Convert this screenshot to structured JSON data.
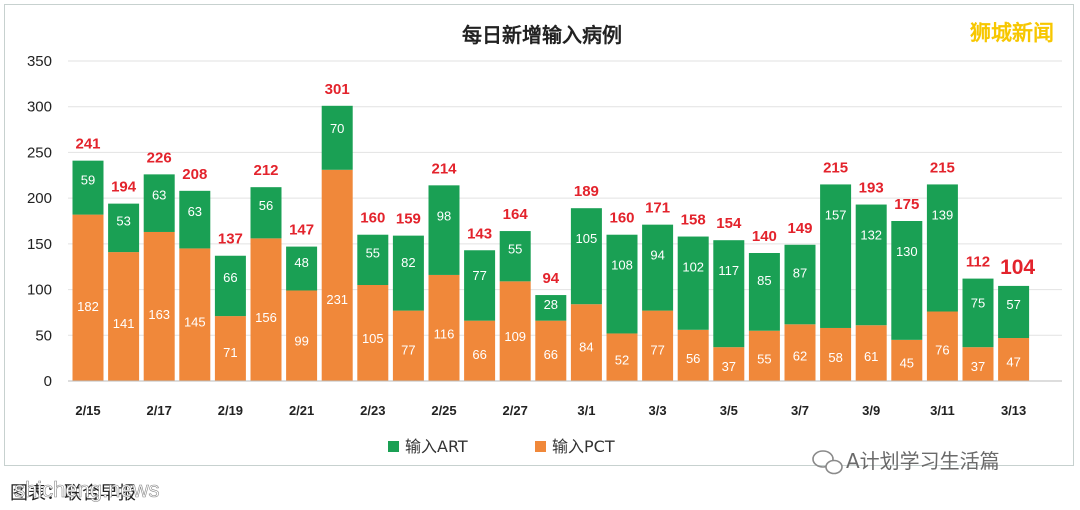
{
  "brand": "狮城新闻",
  "watermark": "A计划学习生活篇",
  "footer": "图表：联合早报",
  "site": "shicheng.news",
  "colors": {
    "art": "#1aa054",
    "pct": "#f0883a",
    "total": "#e3232c",
    "brand": "#f7c700"
  },
  "chart_data": {
    "type": "bar",
    "stacked": true,
    "title": "每日新增输入病例",
    "ylim": [
      0,
      350
    ],
    "yticks": [
      0,
      50,
      100,
      150,
      200,
      250,
      300,
      350
    ],
    "categories": [
      "2/15",
      "2/16",
      "2/17",
      "2/18",
      "2/19",
      "2/20",
      "2/21",
      "2/22",
      "2/23",
      "2/24",
      "2/25",
      "2/26",
      "2/27",
      "2/28",
      "3/1",
      "3/2",
      "3/3",
      "3/4",
      "3/5",
      "3/6",
      "3/7",
      "3/8",
      "3/9",
      "3/10",
      "3/11",
      "3/12",
      "3/13"
    ],
    "xtick_labels": [
      "2/15",
      "",
      "2/17",
      "",
      "2/19",
      "",
      "2/21",
      "",
      "2/23",
      "",
      "2/25",
      "",
      "2/27",
      "",
      "3/1",
      "",
      "3/3",
      "",
      "3/5",
      "",
      "3/7",
      "",
      "3/9",
      "",
      "3/11",
      "",
      "3/13"
    ],
    "series": [
      {
        "name": "输入PCT",
        "values": [
          182,
          141,
          163,
          145,
          71,
          156,
          99,
          231,
          105,
          77,
          116,
          66,
          109,
          66,
          84,
          52,
          77,
          56,
          37,
          55,
          62,
          58,
          61,
          45,
          76,
          37,
          47
        ]
      },
      {
        "name": "输入ART",
        "values": [
          59,
          53,
          63,
          63,
          66,
          56,
          48,
          70,
          55,
          82,
          98,
          77,
          55,
          28,
          105,
          108,
          94,
          102,
          117,
          85,
          87,
          157,
          132,
          130,
          139,
          75,
          57
        ]
      }
    ],
    "totals": [
      241,
      194,
      226,
      208,
      137,
      212,
      147,
      301,
      160,
      159,
      214,
      143,
      164,
      94,
      189,
      160,
      171,
      158,
      154,
      140,
      149,
      215,
      193,
      175,
      215,
      112,
      104
    ],
    "legend": {
      "placement": "bottom",
      "entries": [
        "输入ART",
        "输入PCT"
      ]
    },
    "grid": true
  }
}
